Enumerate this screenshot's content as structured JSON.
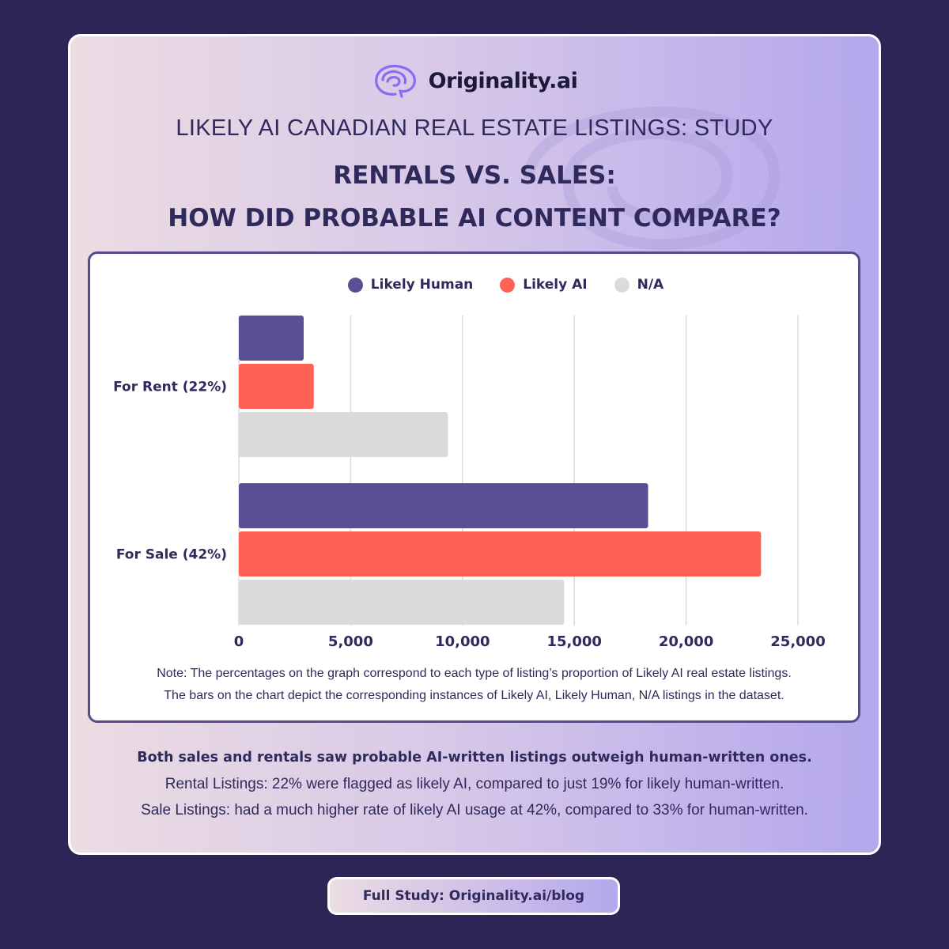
{
  "brand": {
    "name": "Originality.ai"
  },
  "study_title": "LIKELY AI CANADIAN REAL ESTATE LISTINGS: STUDY",
  "headline": {
    "line1": "RENTALS VS. SALES:",
    "line2": "HOW DID PROBABLE AI CONTENT COMPARE?"
  },
  "colors": {
    "likely_human": "#5a4f94",
    "likely_ai": "#ff6254",
    "na": "#dcdadd",
    "grid": "#dcdbe3",
    "text": "#2f2a5c"
  },
  "chart_data": {
    "type": "bar",
    "orientation": "horizontal",
    "categories": [
      "For Rent (22%)",
      "For Sale (42%)"
    ],
    "series": [
      {
        "name": "Likely Human",
        "values": [
          2900,
          18300
        ]
      },
      {
        "name": "Likely AI",
        "values": [
          3350,
          23350
        ]
      },
      {
        "name": "N/A",
        "values": [
          9350,
          14550
        ]
      }
    ],
    "xlim": [
      0,
      25000
    ],
    "xticks": [
      "0",
      "5,000",
      "10,000",
      "15,000",
      "20,000",
      "25,000"
    ],
    "grid": true,
    "legend_position": "top"
  },
  "note": {
    "line1": "Note: The percentages on the graph correspond to each type of listing’s proportion of Likely AI real estate listings.",
    "line2": "The bars on the chart depict the corresponding instances of Likely AI, Likely Human, N/A listings in the dataset."
  },
  "summary": {
    "bold": "Both sales and rentals saw probable AI-written listings outweigh human-written ones.",
    "rental": "Rental Listings: 22% were flagged as likely AI, compared to just 19% for likely human-written.",
    "sale": "Sale Listings: had a much higher rate of likely AI usage at 42%, compared to 33% for human-written."
  },
  "cta": {
    "label": "Full Study: Originality.ai/blog"
  }
}
